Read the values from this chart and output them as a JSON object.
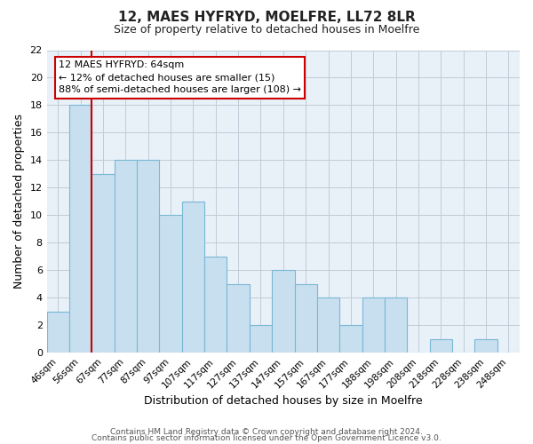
{
  "title1": "12, MAES HYFRYD, MOELFRE, LL72 8LR",
  "title2": "Size of property relative to detached houses in Moelfre",
  "xlabel": "Distribution of detached houses by size in Moelfre",
  "ylabel": "Number of detached properties",
  "bar_labels": [
    "46sqm",
    "56sqm",
    "67sqm",
    "77sqm",
    "87sqm",
    "97sqm",
    "107sqm",
    "117sqm",
    "127sqm",
    "137sqm",
    "147sqm",
    "157sqm",
    "167sqm",
    "177sqm",
    "188sqm",
    "198sqm",
    "208sqm",
    "218sqm",
    "228sqm",
    "238sqm",
    "248sqm"
  ],
  "bar_values": [
    3,
    18,
    13,
    14,
    14,
    10,
    11,
    7,
    5,
    2,
    6,
    5,
    4,
    2,
    4,
    4,
    0,
    1,
    0,
    1,
    0
  ],
  "bar_color": "#c8dff0",
  "bar_edge_color": "#7ab8d4",
  "highlight_line_index": 2,
  "highlight_line_color": "#cc0000",
  "annotation_title": "12 MAES HYFRYD: 64sqm",
  "annotation_line1": "← 12% of detached houses are smaller (15)",
  "annotation_line2": "88% of semi-detached houses are larger (108) →",
  "ylim": [
    0,
    22
  ],
  "yticks": [
    0,
    2,
    4,
    6,
    8,
    10,
    12,
    14,
    16,
    18,
    20,
    22
  ],
  "footer1": "Contains HM Land Registry data © Crown copyright and database right 2024.",
  "footer2": "Contains public sector information licensed under the Open Government Licence v3.0.",
  "bg_color": "#ffffff",
  "plot_bg_color": "#e8f0f8",
  "grid_color": "#c0ccd8",
  "fig_width": 6.0,
  "fig_height": 5.0
}
